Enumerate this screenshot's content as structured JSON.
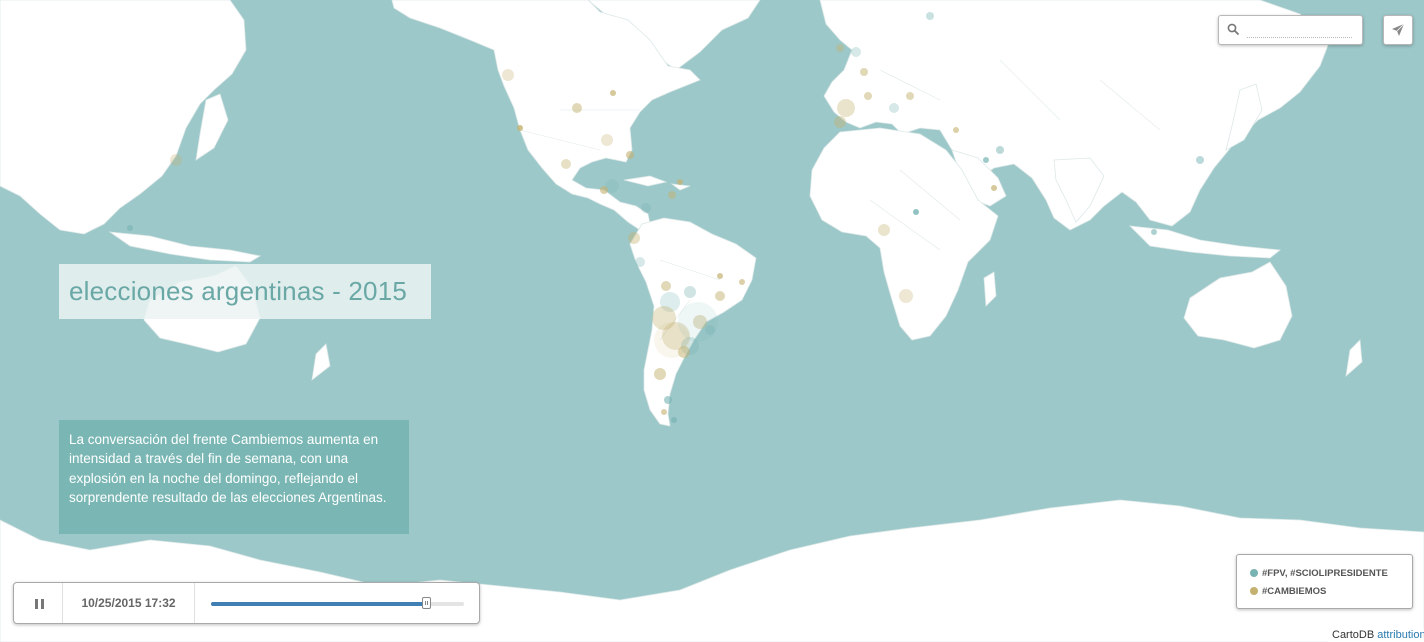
{
  "map": {
    "ocean_color": "#9dc8c9",
    "land_color": "#ffffff",
    "border_color": "#d7e3e3"
  },
  "title": "elecciones argentinas - 2015",
  "description": "La conversación del frente Cambiemos aumenta en intensidad a través del fin de semana, con una explosión en la noche del domingo, reflejando el sorprendente resultado de las elecciones Argentinas.",
  "search": {
    "placeholder": "",
    "value": "",
    "icon": "search-icon"
  },
  "share": {
    "icon": "paper-plane-icon"
  },
  "timeline": {
    "play_state_icon": "pause-icon",
    "timestamp": "10/25/2015 17:32",
    "progress": 0.85
  },
  "legend": {
    "items": [
      {
        "label": "#FPV, #SCIOLIPRESIDENTE",
        "color": "#77b3b2"
      },
      {
        "label": "#CAMBIEMOS",
        "color": "#c4b16f"
      }
    ]
  },
  "attribution": {
    "prefix": "CartoDB",
    "link": "attribution"
  }
}
